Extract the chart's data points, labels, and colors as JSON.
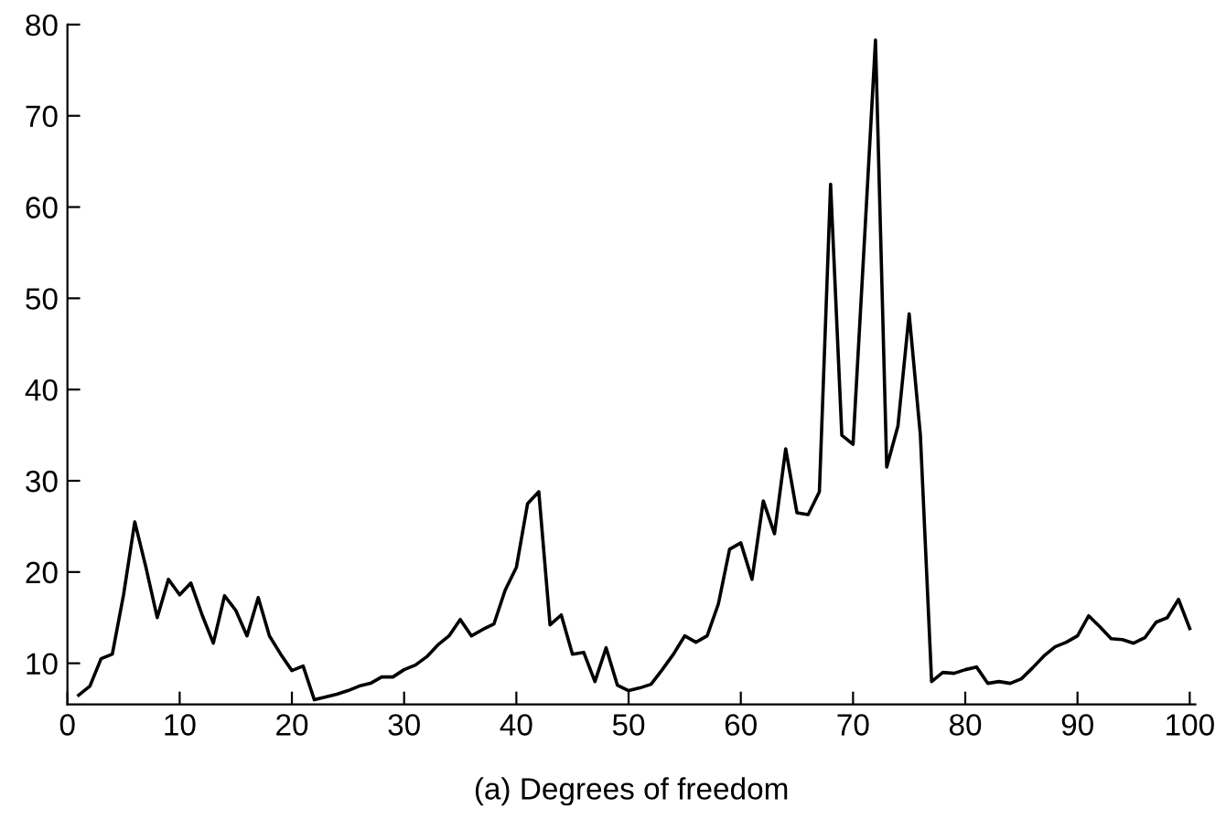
{
  "chart_data": {
    "type": "line",
    "xlabel": "(a) Degrees of freedom",
    "x": [
      1,
      2,
      3,
      4,
      5,
      6,
      7,
      8,
      9,
      10,
      11,
      12,
      13,
      14,
      15,
      16,
      17,
      18,
      19,
      20,
      21,
      22,
      23,
      24,
      25,
      26,
      27,
      28,
      29,
      30,
      31,
      32,
      33,
      34,
      35,
      36,
      37,
      38,
      39,
      40,
      41,
      42,
      43,
      44,
      45,
      46,
      47,
      48,
      49,
      50,
      51,
      52,
      53,
      54,
      55,
      56,
      57,
      58,
      59,
      60,
      61,
      62,
      63,
      64,
      65,
      66,
      67,
      68,
      69,
      70,
      71,
      72,
      73,
      74,
      75,
      76,
      77,
      78,
      79,
      80,
      81,
      82,
      83,
      84,
      85,
      86,
      87,
      88,
      89,
      90,
      91,
      92,
      93,
      94,
      95,
      96,
      97,
      98,
      99,
      100
    ],
    "series": [
      {
        "color": "#000000",
        "values": [
          6.5,
          7.5,
          10.5,
          11,
          17.5,
          25.5,
          20.5,
          15,
          19.2,
          17.5,
          18.8,
          15.3,
          12.2,
          17.4,
          15.8,
          13,
          17.2,
          13,
          11,
          9.2,
          9.7,
          6,
          6.3,
          6.6,
          7,
          7.5,
          7.8,
          8.5,
          8.5,
          9.3,
          9.8,
          10.7,
          12,
          13,
          14.8,
          13,
          13.7,
          14.3,
          18,
          20.5,
          27.5,
          28.8,
          14.2,
          15.3,
          11,
          11.2,
          8,
          11.7,
          7.6,
          7,
          7.3,
          7.7,
          9.3,
          11,
          13,
          12.3,
          13,
          16.5,
          22.5,
          23.2,
          19.2,
          27.8,
          24.2,
          33.5,
          26.5,
          26.3,
          28.8,
          62.5,
          35,
          34,
          56,
          78.3,
          31.5,
          36,
          48.3,
          35,
          8,
          9,
          8.9,
          9.3,
          9.6,
          7.8,
          8,
          7.8,
          8.3,
          9.5,
          10.8,
          11.8,
          12.3,
          13,
          15.2,
          14,
          12.7,
          12.6,
          12.2,
          12.8,
          14.5,
          15,
          17,
          13.8
        ]
      }
    ],
    "xlim": [
      0,
      100.5
    ],
    "xticks": [
      0,
      10,
      20,
      30,
      40,
      50,
      60,
      70,
      80,
      90,
      100
    ],
    "ylim": [
      5.5,
      80
    ],
    "yticks": [
      10,
      20,
      30,
      40,
      50,
      60,
      70,
      80
    ],
    "marker": "none",
    "line_style": "solid"
  }
}
